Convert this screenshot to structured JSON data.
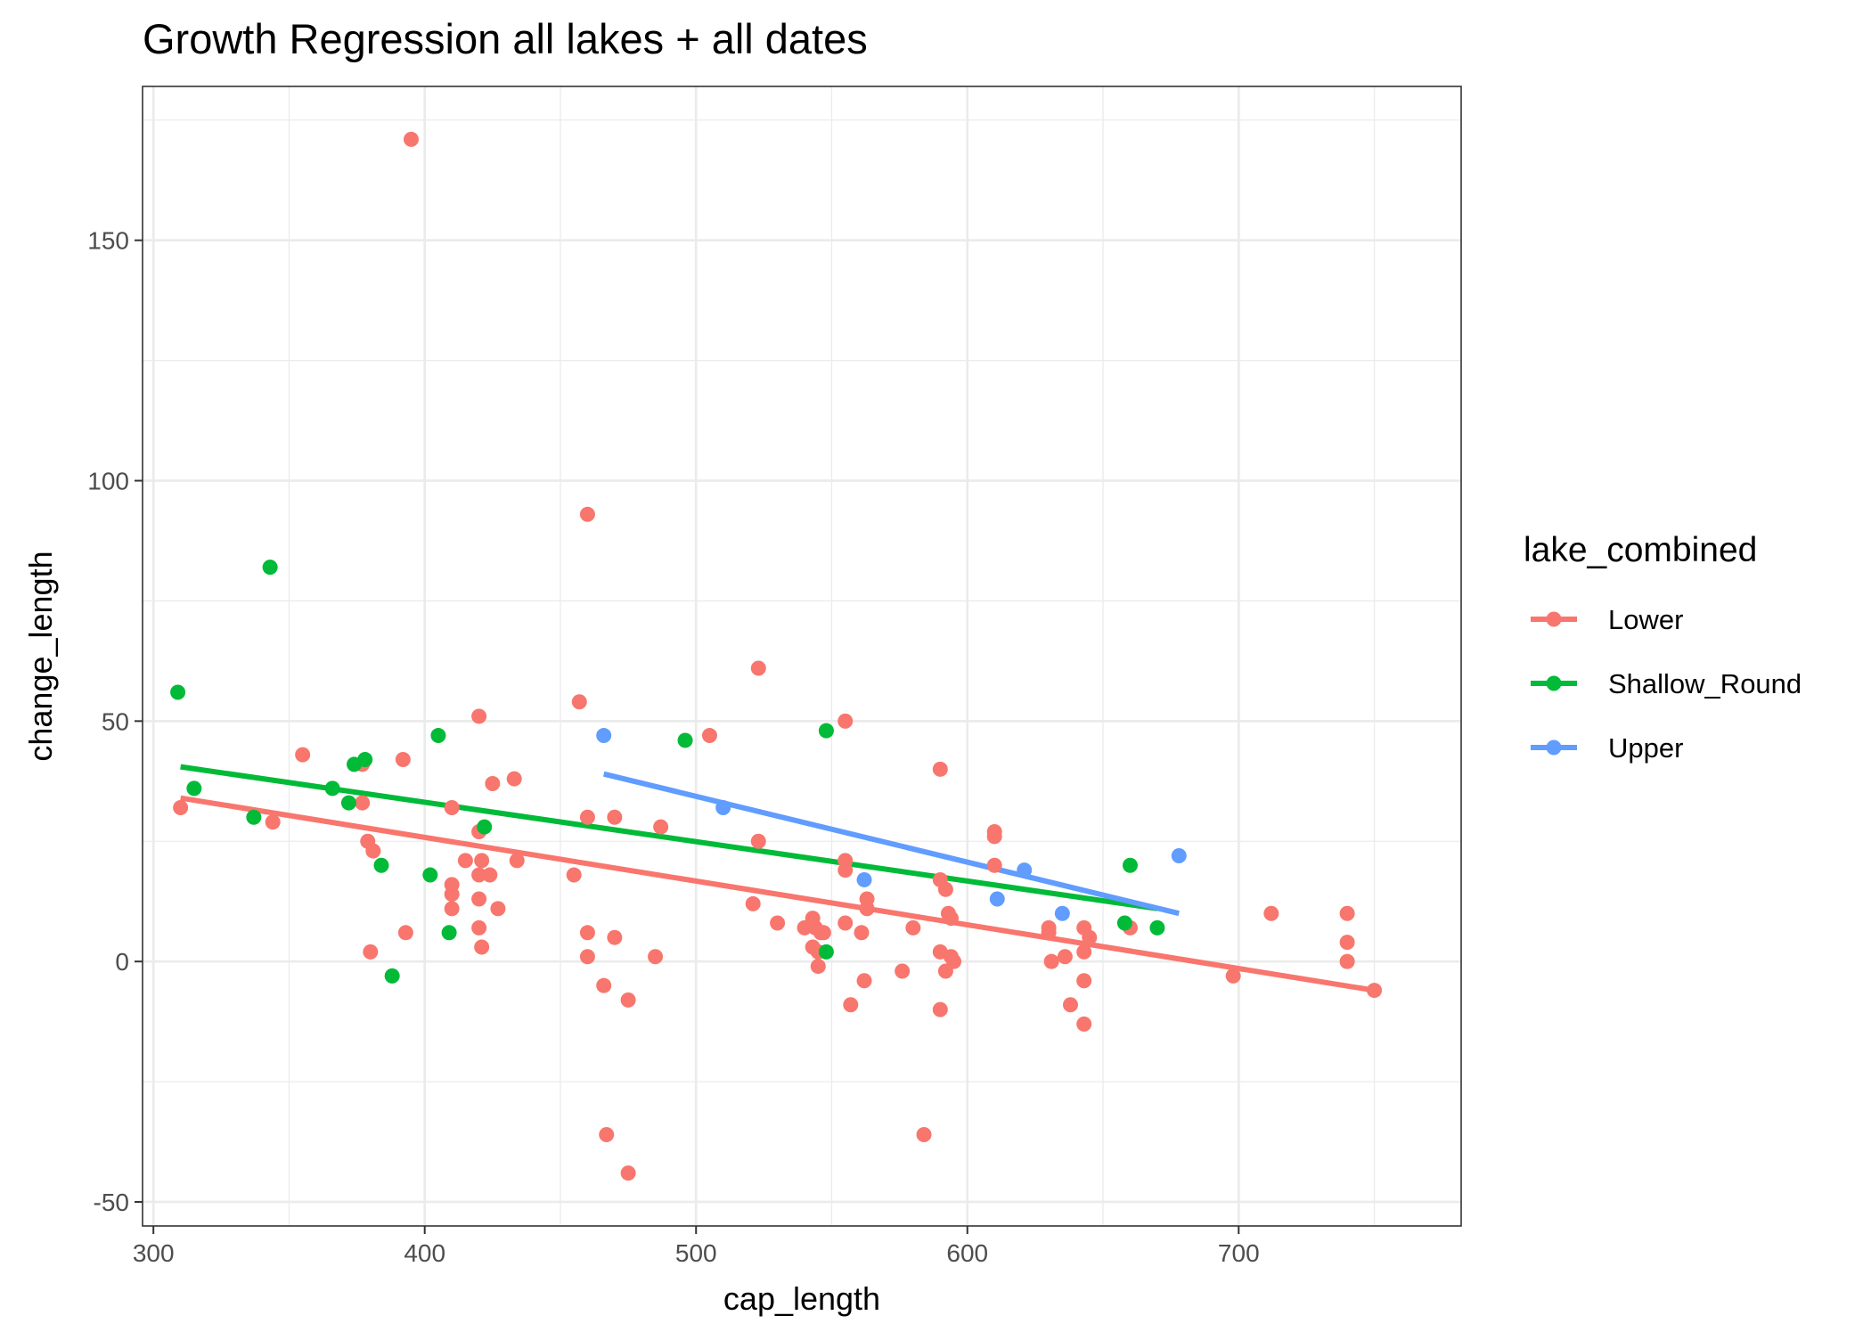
{
  "chart_data": {
    "type": "scatter",
    "title": "Growth Regression all lakes + all dates",
    "xlabel": "cap_length",
    "ylabel": "change_length",
    "xlim": [
      296,
      782
    ],
    "ylim": [
      -55,
      182
    ],
    "x_ticks": [
      300,
      400,
      500,
      600,
      700
    ],
    "y_ticks": [
      -50,
      0,
      50,
      100,
      150
    ],
    "x_tick_labels": [
      "300",
      "400",
      "500",
      "600",
      "700"
    ],
    "y_tick_labels": [
      "-50",
      "0",
      "50",
      "100",
      "150"
    ],
    "grid": true,
    "legend": {
      "title": "lake_combined",
      "position": "right"
    },
    "series": [
      {
        "name": "Lower",
        "color": "#F8766D",
        "fit": {
          "x": [
            310,
            750
          ],
          "y": [
            34,
            -6
          ]
        },
        "points": [
          [
            310,
            32
          ],
          [
            344,
            29
          ],
          [
            355,
            43
          ],
          [
            377,
            41
          ],
          [
            377,
            33
          ],
          [
            379,
            25
          ],
          [
            380,
            2
          ],
          [
            381,
            23
          ],
          [
            392,
            42
          ],
          [
            393,
            6
          ],
          [
            395,
            171
          ],
          [
            410,
            32
          ],
          [
            410,
            16
          ],
          [
            410,
            14
          ],
          [
            410,
            11
          ],
          [
            415,
            21
          ],
          [
            420,
            51
          ],
          [
            420,
            27
          ],
          [
            420,
            18
          ],
          [
            420,
            13
          ],
          [
            420,
            7
          ],
          [
            421,
            3
          ],
          [
            421,
            21
          ],
          [
            424,
            18
          ],
          [
            425,
            37
          ],
          [
            427,
            11
          ],
          [
            433,
            38
          ],
          [
            434,
            21
          ],
          [
            455,
            18
          ],
          [
            457,
            54
          ],
          [
            460,
            93
          ],
          [
            460,
            30
          ],
          [
            460,
            6
          ],
          [
            460,
            1
          ],
          [
            466,
            -5
          ],
          [
            467,
            -36
          ],
          [
            470,
            30
          ],
          [
            470,
            5
          ],
          [
            475,
            -8
          ],
          [
            475,
            -44
          ],
          [
            485,
            1
          ],
          [
            487,
            28
          ],
          [
            505,
            47
          ],
          [
            521,
            12
          ],
          [
            523,
            61
          ],
          [
            523,
            25
          ],
          [
            530,
            8
          ],
          [
            540,
            7
          ],
          [
            543,
            9
          ],
          [
            543,
            3
          ],
          [
            544,
            7
          ],
          [
            545,
            2
          ],
          [
            545,
            -1
          ],
          [
            546,
            6
          ],
          [
            547,
            6
          ],
          [
            555,
            50
          ],
          [
            555,
            21
          ],
          [
            555,
            19
          ],
          [
            555,
            8
          ],
          [
            557,
            -9
          ],
          [
            561,
            6
          ],
          [
            562,
            -4
          ],
          [
            563,
            13
          ],
          [
            563,
            11
          ],
          [
            576,
            -2
          ],
          [
            580,
            7
          ],
          [
            584,
            -36
          ],
          [
            590,
            40
          ],
          [
            590,
            17
          ],
          [
            590,
            2
          ],
          [
            590,
            -10
          ],
          [
            592,
            15
          ],
          [
            592,
            -2
          ],
          [
            593,
            10
          ],
          [
            594,
            9
          ],
          [
            594,
            1
          ],
          [
            595,
            0
          ],
          [
            610,
            27
          ],
          [
            610,
            26
          ],
          [
            610,
            20
          ],
          [
            630,
            7
          ],
          [
            630,
            6
          ],
          [
            631,
            0
          ],
          [
            636,
            1
          ],
          [
            638,
            -9
          ],
          [
            643,
            7
          ],
          [
            643,
            2
          ],
          [
            643,
            -4
          ],
          [
            643,
            -13
          ],
          [
            645,
            5
          ],
          [
            660,
            7
          ],
          [
            698,
            -3
          ],
          [
            712,
            10
          ],
          [
            740,
            10
          ],
          [
            740,
            4
          ],
          [
            740,
            0
          ],
          [
            750,
            -6
          ]
        ]
      },
      {
        "name": "Shallow_Round",
        "color": "#00BA38",
        "fit": {
          "x": [
            310,
            670
          ],
          "y": [
            40.5,
            11
          ]
        },
        "points": [
          [
            309,
            56
          ],
          [
            315,
            36
          ],
          [
            337,
            30
          ],
          [
            343,
            82
          ],
          [
            366,
            36
          ],
          [
            372,
            33
          ],
          [
            374,
            41
          ],
          [
            378,
            42
          ],
          [
            384,
            20
          ],
          [
            388,
            -3
          ],
          [
            402,
            18
          ],
          [
            405,
            47
          ],
          [
            409,
            6
          ],
          [
            422,
            28
          ],
          [
            496,
            46
          ],
          [
            548,
            48
          ],
          [
            548,
            2
          ],
          [
            658,
            8
          ],
          [
            660,
            20
          ],
          [
            670,
            7
          ]
        ]
      },
      {
        "name": "Upper",
        "color": "#619CFF",
        "fit": {
          "x": [
            466,
            678
          ],
          "y": [
            39,
            10
          ]
        },
        "points": [
          [
            466,
            47
          ],
          [
            510,
            32
          ],
          [
            562,
            17
          ],
          [
            611,
            13
          ],
          [
            621,
            19
          ],
          [
            635,
            10
          ],
          [
            678,
            22
          ]
        ]
      }
    ]
  }
}
